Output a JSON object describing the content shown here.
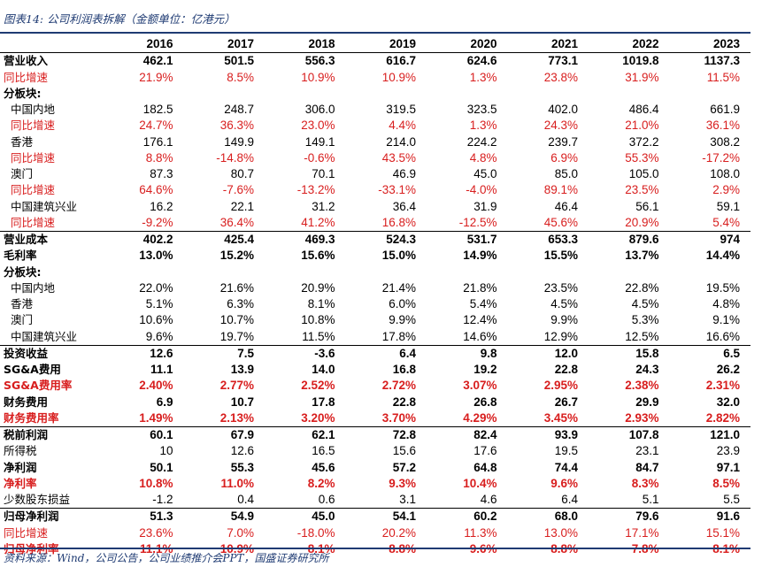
{
  "title": "图表14: 公司利润表拆解（金额单位：亿港元）",
  "source": "资料来源：Wind，公司公告，公司业绩推介会PPT，国盛证券研究所",
  "years": [
    "2016",
    "2017",
    "2018",
    "2019",
    "2020",
    "2021",
    "2022",
    "2023"
  ],
  "rows": [
    {
      "label": "营业收入",
      "bold": true,
      "values": [
        "462.1",
        "501.5",
        "556.3",
        "616.7",
        "624.6",
        "773.1",
        "1019.8",
        "1137.3"
      ]
    },
    {
      "label": "同比增速",
      "red": true,
      "values": [
        "21.9%",
        "8.5%",
        "10.9%",
        "10.9%",
        "1.3%",
        "23.8%",
        "31.9%",
        "11.5%"
      ]
    },
    {
      "label": "分板块:",
      "bold": true,
      "values": [
        "",
        "",
        "",
        "",
        "",
        "",
        "",
        ""
      ]
    },
    {
      "label": "中国内地",
      "indent": true,
      "values": [
        "182.5",
        "248.7",
        "306.0",
        "319.5",
        "323.5",
        "402.0",
        "486.4",
        "661.9"
      ]
    },
    {
      "label": "同比增速",
      "indent": true,
      "red": true,
      "values": [
        "24.7%",
        "36.3%",
        "23.0%",
        "4.4%",
        "1.3%",
        "24.3%",
        "21.0%",
        "36.1%"
      ]
    },
    {
      "label": "香港",
      "indent": true,
      "values": [
        "176.1",
        "149.9",
        "149.1",
        "214.0",
        "224.2",
        "239.7",
        "372.2",
        "308.2"
      ]
    },
    {
      "label": "同比增速",
      "indent": true,
      "red": true,
      "values": [
        "8.8%",
        "-14.8%",
        "-0.6%",
        "43.5%",
        "4.8%",
        "6.9%",
        "55.3%",
        "-17.2%"
      ]
    },
    {
      "label": "澳门",
      "indent": true,
      "values": [
        "87.3",
        "80.7",
        "70.1",
        "46.9",
        "45.0",
        "85.0",
        "105.0",
        "108.0"
      ]
    },
    {
      "label": "同比增速",
      "indent": true,
      "red": true,
      "values": [
        "64.6%",
        "-7.6%",
        "-13.2%",
        "-33.1%",
        "-4.0%",
        "89.1%",
        "23.5%",
        "2.9%"
      ]
    },
    {
      "label": "中国建筑兴业",
      "indent": true,
      "values": [
        "16.2",
        "22.1",
        "31.2",
        "36.4",
        "31.9",
        "46.4",
        "56.1",
        "59.1"
      ]
    },
    {
      "label": "同比增速",
      "indent": true,
      "red": true,
      "sep": true,
      "values": [
        "-9.2%",
        "36.4%",
        "41.2%",
        "16.8%",
        "-12.5%",
        "45.6%",
        "20.9%",
        "5.4%"
      ]
    },
    {
      "label": "营业成本",
      "bold": true,
      "values": [
        "402.2",
        "425.4",
        "469.3",
        "524.3",
        "531.7",
        "653.3",
        "879.6",
        "974"
      ]
    },
    {
      "label": "毛利率",
      "bold": true,
      "values": [
        "13.0%",
        "15.2%",
        "15.6%",
        "15.0%",
        "14.9%",
        "15.5%",
        "13.7%",
        "14.4%"
      ]
    },
    {
      "label": "分板块:",
      "bold": true,
      "values": [
        "",
        "",
        "",
        "",
        "",
        "",
        "",
        ""
      ]
    },
    {
      "label": "中国内地",
      "indent": true,
      "values": [
        "22.0%",
        "21.6%",
        "20.9%",
        "21.4%",
        "21.8%",
        "23.5%",
        "22.8%",
        "19.5%"
      ]
    },
    {
      "label": "香港",
      "indent": true,
      "values": [
        "5.1%",
        "6.3%",
        "8.1%",
        "6.0%",
        "5.4%",
        "4.5%",
        "4.5%",
        "4.8%"
      ]
    },
    {
      "label": "澳门",
      "indent": true,
      "values": [
        "10.6%",
        "10.7%",
        "10.8%",
        "9.9%",
        "12.4%",
        "9.9%",
        "5.3%",
        "9.1%"
      ]
    },
    {
      "label": "中国建筑兴业",
      "indent": true,
      "sep": true,
      "values": [
        "9.6%",
        "19.7%",
        "11.5%",
        "17.8%",
        "14.6%",
        "12.9%",
        "12.5%",
        "16.6%"
      ]
    },
    {
      "label": "投资收益",
      "bold": true,
      "values": [
        "12.6",
        "7.5",
        "-3.6",
        "6.4",
        "9.8",
        "12.0",
        "15.8",
        "6.5"
      ]
    },
    {
      "label": "SG&A费用",
      "bold": true,
      "values": [
        "11.1",
        "13.9",
        "14.0",
        "16.8",
        "19.2",
        "22.8",
        "24.3",
        "26.2"
      ]
    },
    {
      "label": "SG&A费用率",
      "bold": true,
      "red": true,
      "values": [
        "2.40%",
        "2.77%",
        "2.52%",
        "2.72%",
        "3.07%",
        "2.95%",
        "2.38%",
        "2.31%"
      ]
    },
    {
      "label": "财务费用",
      "bold": true,
      "values": [
        "6.9",
        "10.7",
        "17.8",
        "22.8",
        "26.8",
        "26.7",
        "29.9",
        "32.0"
      ]
    },
    {
      "label": "财务费用率",
      "bold": true,
      "red": true,
      "sep": true,
      "values": [
        "1.49%",
        "2.13%",
        "3.20%",
        "3.70%",
        "4.29%",
        "3.45%",
        "2.93%",
        "2.82%"
      ]
    },
    {
      "label": "税前利润",
      "bold": true,
      "values": [
        "60.1",
        "67.9",
        "62.1",
        "72.8",
        "82.4",
        "93.9",
        "107.8",
        "121.0"
      ]
    },
    {
      "label": "所得税",
      "values": [
        "10",
        "12.6",
        "16.5",
        "15.6",
        "17.6",
        "19.5",
        "23.1",
        "23.9"
      ]
    },
    {
      "label": "净利润",
      "bold": true,
      "values": [
        "50.1",
        "55.3",
        "45.6",
        "57.2",
        "64.8",
        "74.4",
        "84.7",
        "97.1"
      ]
    },
    {
      "label": "净利率",
      "bold": true,
      "red": true,
      "values": [
        "10.8%",
        "11.0%",
        "8.2%",
        "9.3%",
        "10.4%",
        "9.6%",
        "8.3%",
        "8.5%"
      ]
    },
    {
      "label": "少数股东损益",
      "sep": true,
      "values": [
        "-1.2",
        "0.4",
        "0.6",
        "3.1",
        "4.6",
        "6.4",
        "5.1",
        "5.5"
      ]
    },
    {
      "label": "归母净利润",
      "bold": true,
      "values": [
        "51.3",
        "54.9",
        "45.0",
        "54.1",
        "60.2",
        "68.0",
        "79.6",
        "91.6"
      ]
    },
    {
      "label": "同比增速",
      "red": true,
      "values": [
        "23.6%",
        "7.0%",
        "-18.0%",
        "20.2%",
        "11.3%",
        "13.0%",
        "17.1%",
        "15.1%"
      ]
    },
    {
      "label": "归母净利率",
      "bold": true,
      "red": true,
      "values": [
        "11.1%",
        "10.9%",
        "8.1%",
        "8.8%",
        "9.6%",
        "8.8%",
        "7.8%",
        "8.1%"
      ]
    }
  ]
}
